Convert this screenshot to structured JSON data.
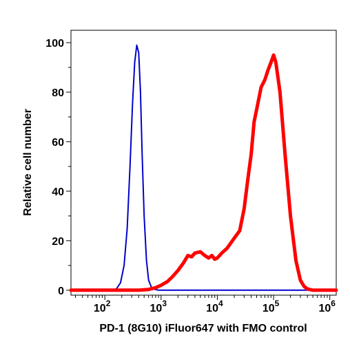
{
  "chart_data": {
    "type": "line",
    "title": "",
    "xlabel": "PD-1 (8G10) iFluor647 with FMO control",
    "ylabel": "Relative cell number",
    "x_scale": "log",
    "xlim": [
      25,
      1300000
    ],
    "ylim": [
      -2,
      105
    ],
    "x_ticks": [
      {
        "value": 100,
        "base": "10",
        "exp": "2"
      },
      {
        "value": 1000,
        "base": "10",
        "exp": "3"
      },
      {
        "value": 10000,
        "base": "10",
        "exp": "4"
      },
      {
        "value": 100000,
        "base": "10",
        "exp": "5"
      },
      {
        "value": 1000000,
        "base": "10",
        "exp": "6"
      }
    ],
    "y_ticks": [
      0,
      20,
      40,
      60,
      80,
      100
    ],
    "grid": false,
    "legend": "none",
    "series": [
      {
        "color": "#0000cc",
        "x": [
          25,
          120,
          160,
          190,
          220,
          250,
          280,
          310,
          340,
          370,
          400,
          430,
          460,
          500,
          550,
          600,
          680,
          780,
          900,
          1300000
        ],
        "y": [
          0,
          0,
          0.5,
          3,
          10,
          25,
          50,
          75,
          92,
          99,
          96,
          80,
          55,
          30,
          12,
          4,
          1,
          0.3,
          0,
          0
        ]
      },
      {
        "color": "#ff0000",
        "x": [
          25,
          400,
          600,
          800,
          1000,
          1300,
          1600,
          2000,
          2500,
          3000,
          3500,
          4000,
          5000,
          6000,
          7000,
          8000,
          9000,
          10000,
          12000,
          15000,
          20000,
          25000,
          30000,
          35000,
          40000,
          45000,
          50000,
          60000,
          70000,
          80000,
          90000,
          100000,
          110000,
          130000,
          160000,
          200000,
          250000,
          300000,
          350000,
          400000,
          500000,
          1300000
        ],
        "y": [
          0,
          0,
          0.3,
          1,
          2,
          3.5,
          5.5,
          8,
          11,
          14,
          13.5,
          15,
          15.5,
          14,
          13,
          14,
          12.5,
          13,
          15,
          17,
          21,
          24,
          33,
          45,
          55,
          68,
          73,
          82,
          85,
          89,
          92,
          95,
          92,
          80,
          55,
          30,
          12,
          4,
          1.5,
          0.5,
          0,
          0
        ]
      }
    ]
  }
}
